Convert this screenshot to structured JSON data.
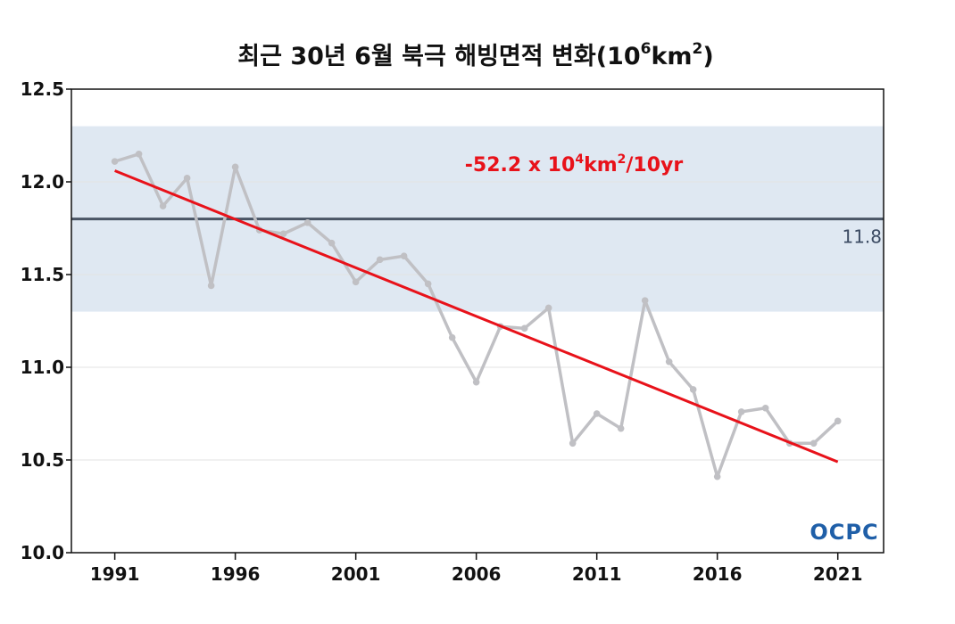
{
  "chart_data": {
    "type": "line",
    "title_main": "최근 30년 6월 북극 해빙면적 변화(10",
    "title_sup1": "6",
    "title_mid": "km",
    "title_sup2": "2",
    "title_end": ")",
    "x": [
      1991,
      1992,
      1993,
      1994,
      1995,
      1996,
      1997,
      1998,
      1999,
      2000,
      2001,
      2002,
      2003,
      2004,
      2005,
      2006,
      2007,
      2008,
      2009,
      2010,
      2011,
      2012,
      2013,
      2014,
      2015,
      2016,
      2017,
      2018,
      2019,
      2020,
      2021
    ],
    "series": [
      {
        "values": [
          12.11,
          12.15,
          11.87,
          12.02,
          11.44,
          12.08,
          11.74,
          11.72,
          11.78,
          11.67,
          11.46,
          11.58,
          11.6,
          11.45,
          11.16,
          10.92,
          11.22,
          11.21,
          11.32,
          10.59,
          10.75,
          10.67,
          11.36,
          11.03,
          10.88,
          10.41,
          10.76,
          10.78,
          10.59,
          10.59,
          10.71
        ],
        "color": "#c0c0c4"
      }
    ],
    "trend": {
      "x": [
        1991,
        2021
      ],
      "y": [
        12.06,
        10.49
      ],
      "color": "#e8121a"
    },
    "trend_label": {
      "pre": "-52.2 x 10",
      "sup1": "4",
      "mid": "km",
      "sup2": "2",
      "post": "/10yr"
    },
    "mean": {
      "value": 11.8,
      "label": "11.8",
      "color": "#4a5565"
    },
    "band": {
      "low": 11.3,
      "high": 12.3,
      "color": "#dfe8f2"
    },
    "xlim": [
      1989.2,
      2022.9
    ],
    "ylim": [
      10.0,
      12.5
    ],
    "xticks": [
      1991,
      1996,
      2001,
      2006,
      2011,
      2016,
      2021
    ],
    "xtick_labels": [
      "1991",
      "1996",
      "2001",
      "2006",
      "2011",
      "2016",
      "2021"
    ],
    "yticks": [
      10.0,
      10.5,
      11.0,
      11.5,
      12.0,
      12.5
    ],
    "ytick_labels": [
      "10.0",
      "10.5",
      "11.0",
      "11.5",
      "12.0",
      "12.5"
    ],
    "grid": true
  },
  "logo": {
    "text": "OCPC"
  }
}
